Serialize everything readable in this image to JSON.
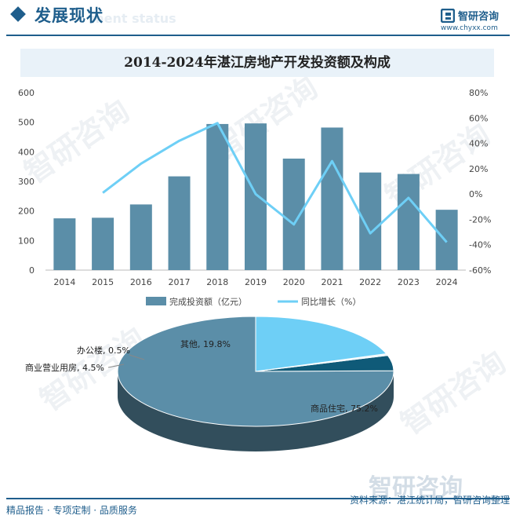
{
  "header": {
    "section_title": "发展现状",
    "section_subtitle": "ment status",
    "brand_name": "智研咨询",
    "brand_url": "www.chyxx.com"
  },
  "watermark": {
    "text": "智研咨询"
  },
  "colors": {
    "bar": "#5b8ea8",
    "line": "#6ecff6",
    "pie_residential": "#5b8ea8",
    "pie_commercial": "#0f5a78",
    "pie_office": "#e8f3fa",
    "pie_other": "#6ecff6",
    "brand": "#1f5e8c"
  },
  "chart_data": [
    {
      "type": "bar",
      "title": "2014-2024年湛江房地产开发投资额及构成",
      "categories": [
        "2014",
        "2015",
        "2016",
        "2017",
        "2018",
        "2019",
        "2020",
        "2021",
        "2022",
        "2023",
        "2024"
      ],
      "series": [
        {
          "name": "完成投资额（亿元）",
          "type": "bar",
          "axis": "left",
          "values": [
            175,
            177,
            222,
            317,
            494,
            496,
            377,
            482,
            330,
            325,
            204
          ]
        },
        {
          "name": "同比增长（%）",
          "type": "line",
          "axis": "right",
          "values": [
            null,
            1,
            24,
            42,
            56,
            0,
            -24,
            26,
            -31,
            -3,
            -38
          ]
        }
      ],
      "y_left": {
        "min": 0,
        "max": 600,
        "ticks": [
          "0",
          "100",
          "200",
          "300",
          "400",
          "500",
          "600"
        ]
      },
      "y_right": {
        "min": -60,
        "max": 80,
        "ticks": [
          "-60%",
          "-40%",
          "-20%",
          "0%",
          "20%",
          "40%",
          "60%",
          "80%"
        ]
      },
      "legend": [
        "完成投资额（亿元）",
        "同比增长（%）"
      ],
      "legend_position": "bottom"
    },
    {
      "type": "pie",
      "slices": [
        {
          "label": "商品住宅",
          "value": 75.2,
          "text": "商品住宅, 75.2%"
        },
        {
          "label": "商业营业用房",
          "value": 4.5,
          "text": "商业营业用房, 4.5%"
        },
        {
          "label": "办公楼",
          "value": 0.5,
          "text": "办公楼, 0.5%"
        },
        {
          "label": "其他",
          "value": 19.8,
          "text": "其他, 19.8%"
        }
      ]
    }
  ],
  "footer": {
    "tagline": "精品报告 · 专项定制 · 品质服务",
    "source": "资料来源：湛江统计局，智研咨询整理"
  }
}
